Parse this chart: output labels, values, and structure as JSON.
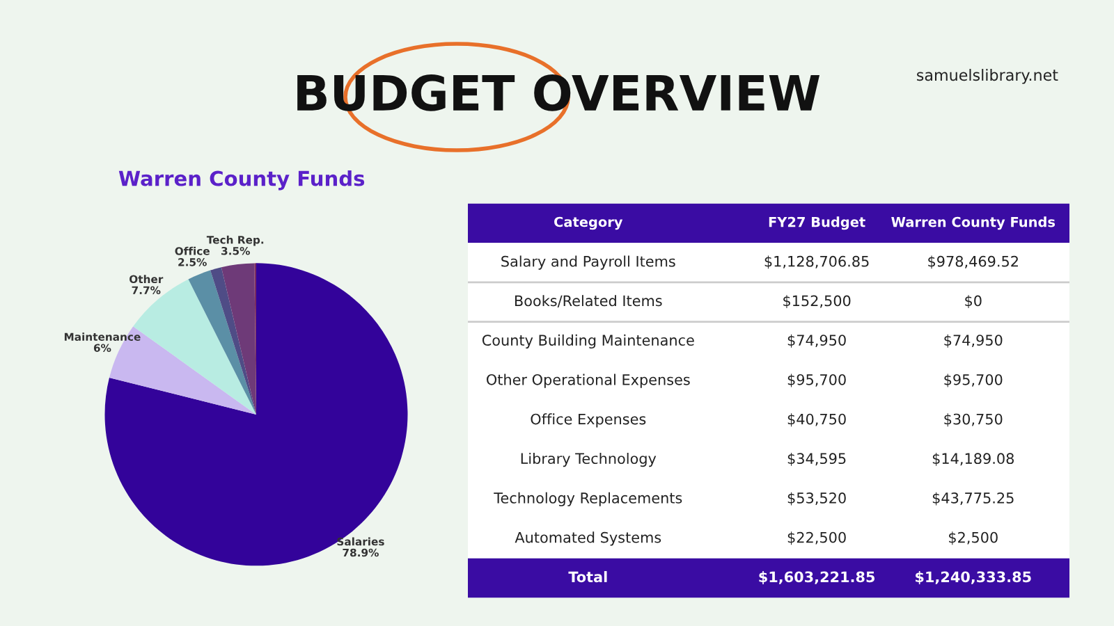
{
  "chart_data": [
    {
      "type": "pie",
      "title": "BUDGET OVERVIEW",
      "subtitle": "Warren County Funds",
      "annotations": [
        "samuelslibrary.net"
      ],
      "categories": [
        "Salaries",
        "Maintenance",
        "Other",
        "Office",
        null,
        "Tech Rep.",
        null
      ],
      "values": [
        78.9,
        6,
        7.7,
        2.5,
        1.2,
        3.5,
        0.2
      ],
      "value_labels": [
        "78.9%",
        "6%",
        "7.7%",
        "2.5%",
        null,
        "3.5%",
        null
      ],
      "colors": [
        "#33039a",
        "#c9b8f0",
        "#b8ece2",
        "#5b8fa6",
        "#4f4c86",
        "#6e3a78",
        "#7a2c62"
      ]
    },
    {
      "type": "other",
      "categories": [
        "Category",
        "FY27 Budget",
        "Warren County Funds"
      ],
      "cell_labels": [
        [
          "Salary and Payroll Items",
          "$1,128,706.85",
          "$978,469.52"
        ],
        [
          "Books/Related Items",
          "$152,500",
          "$0"
        ],
        [
          "County Building Maintenance",
          "$74,950",
          "$74,950"
        ],
        [
          "Other Operational Expenses",
          "$95,700",
          "$95,700"
        ],
        [
          "Office Expenses",
          "$40,750",
          "$30,750"
        ],
        [
          "Library Technology",
          "$34,595",
          "$14,189.08"
        ],
        [
          "Technology Replacements",
          "$53,520",
          "$43,775.25"
        ],
        [
          "Automated Systems",
          "$22,500",
          "$2,500"
        ],
        [
          "Total",
          "$1,603,221.85",
          "$1,240,333.85"
        ]
      ]
    }
  ]
}
